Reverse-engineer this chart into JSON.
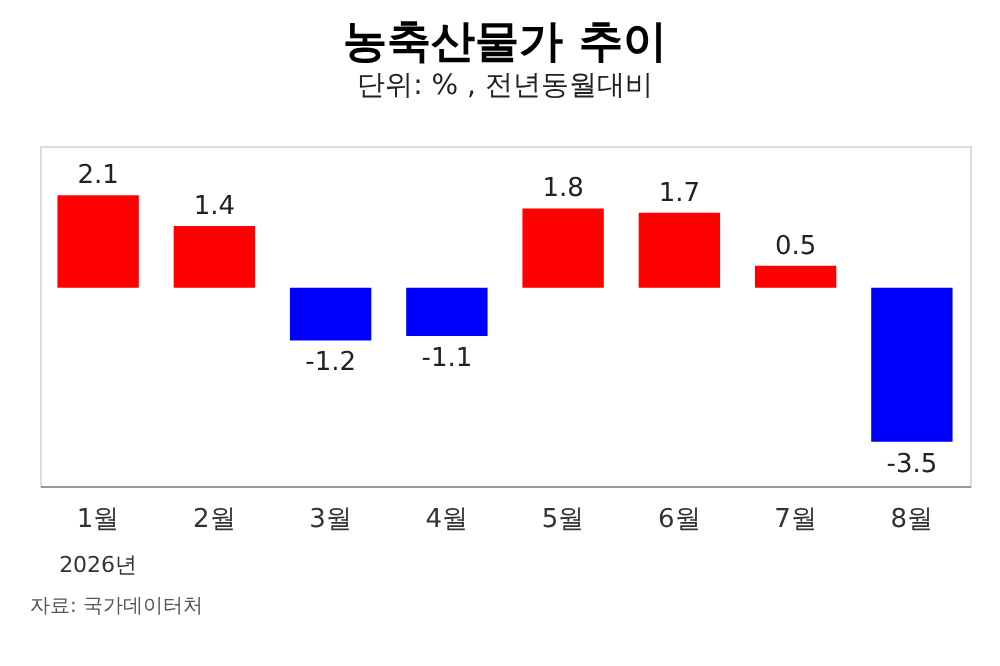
{
  "chart_data": {
    "type": "bar",
    "title": "농축산물가 추이",
    "subtitle": "단위: % , 전년동월대비",
    "categories": [
      "1월",
      "2월",
      "3월",
      "4월",
      "5월",
      "6월",
      "7월",
      "8월"
    ],
    "values": [
      2.1,
      1.4,
      -1.2,
      -1.1,
      1.8,
      1.7,
      0.5,
      -3.5
    ],
    "colors": [
      "#ff0000",
      "#ff0000",
      "#0000ff",
      "#0000ff",
      "#ff0000",
      "#ff0000",
      "#ff0000",
      "#0000ff"
    ],
    "data_labels": true,
    "annotations": [
      "2026년",
      "자료: 국가데이터처"
    ]
  }
}
